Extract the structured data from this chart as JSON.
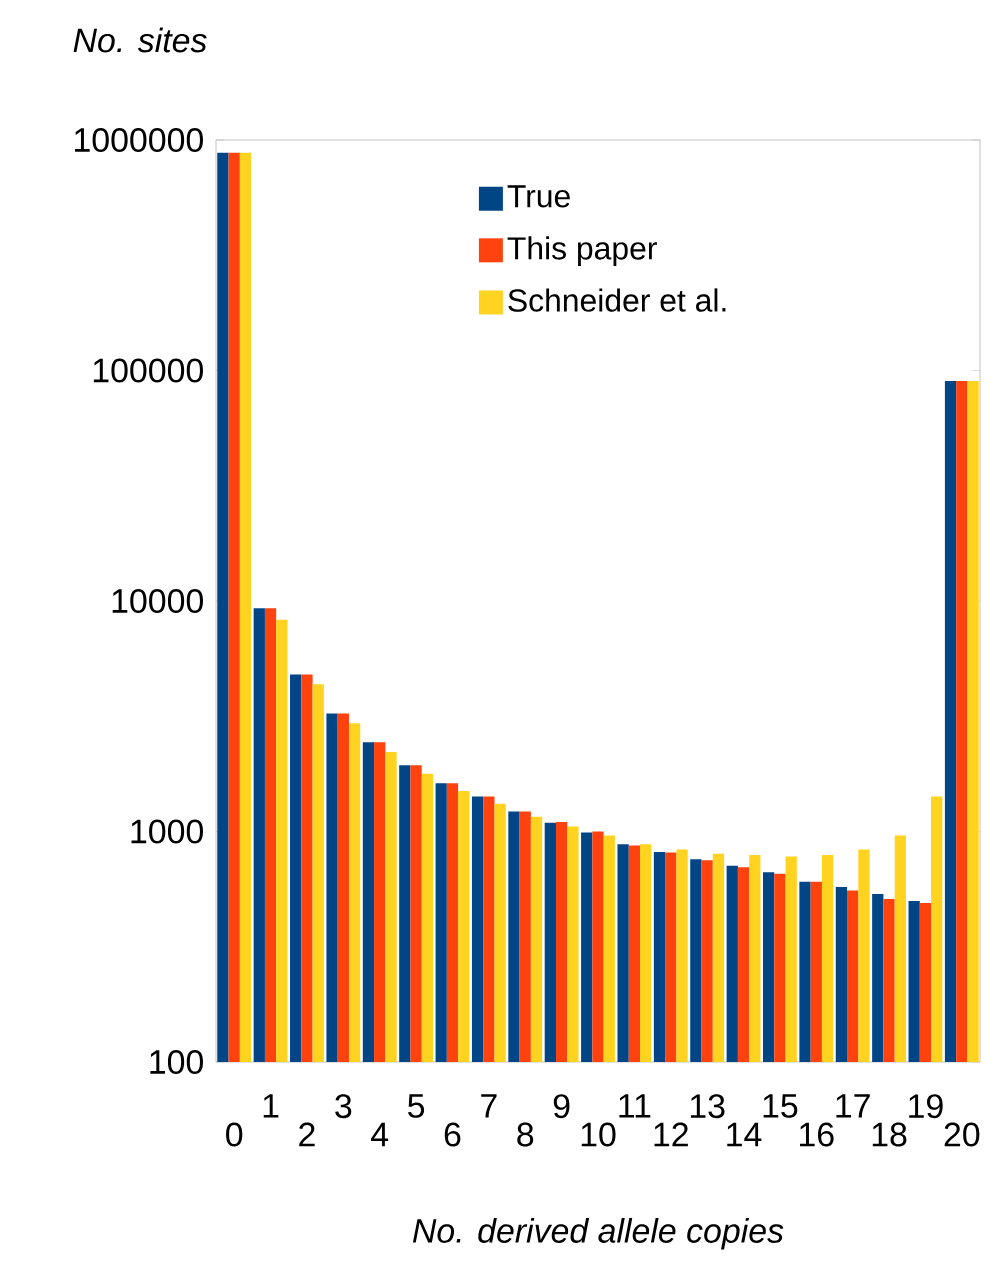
{
  "chart_data": {
    "type": "bar",
    "xlabel": "No. derived allele copies",
    "ylabel": "No. sites",
    "categories": [
      "0",
      "1",
      "2",
      "3",
      "4",
      "5",
      "6",
      "7",
      "8",
      "9",
      "10",
      "11",
      "12",
      "13",
      "14",
      "15",
      "16",
      "17",
      "18",
      "19",
      "20"
    ],
    "series": [
      {
        "name": "True",
        "color": "#004586",
        "values": [
          880000,
          9300,
          4800,
          3250,
          2440,
          1940,
          1620,
          1420,
          1220,
          1090,
          990,
          880,
          815,
          757,
          710,
          665,
          605,
          575,
          535,
          500,
          90000
        ]
      },
      {
        "name": "This paper",
        "color": "#ff420e",
        "values": [
          880000,
          9300,
          4800,
          3250,
          2440,
          1940,
          1620,
          1420,
          1220,
          1100,
          1000,
          870,
          810,
          750,
          700,
          655,
          605,
          555,
          510,
          490,
          90000
        ]
      },
      {
        "name": "Schneider et al.",
        "color": "#ffd320",
        "values": [
          880000,
          8300,
          4350,
          2950,
          2210,
          1780,
          1500,
          1320,
          1160,
          1050,
          960,
          880,
          835,
          800,
          790,
          780,
          790,
          835,
          960,
          1420,
          90000
        ]
      }
    ],
    "log": true,
    "ylim": [
      100,
      1000000
    ],
    "yticks": [
      100,
      1000,
      10000,
      100000,
      1000000
    ],
    "legend": "top",
    "grid": false
  }
}
